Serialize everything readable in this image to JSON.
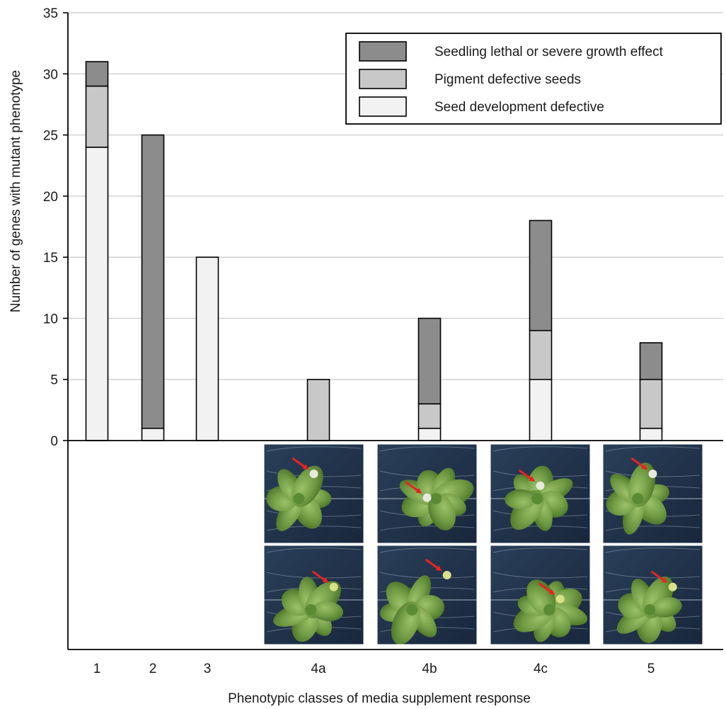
{
  "chart_data": {
    "type": "bar",
    "stacked": true,
    "title": "",
    "xlabel": "Phenotypic classes of media supplement response",
    "ylabel": "Number of genes with mutant phenotype",
    "ylim": [
      0,
      35
    ],
    "yticks": [
      0,
      5,
      10,
      15,
      20,
      25,
      30,
      35
    ],
    "grid": true,
    "legend_position": "top-right",
    "categories": [
      "1",
      "2",
      "3",
      "4a",
      "4b",
      "4c",
      "5"
    ],
    "series": [
      {
        "name": "Seed development defective",
        "color": "#f2f2f2",
        "values": [
          24,
          1,
          15,
          0,
          1,
          5,
          1
        ]
      },
      {
        "name": "Pigment defective seeds",
        "color": "#c8c8c8",
        "values": [
          5,
          0,
          0,
          5,
          2,
          4,
          4
        ]
      },
      {
        "name": "Seedling lethal or severe growth effect",
        "color": "#8c8c8c",
        "values": [
          2,
          24,
          0,
          0,
          7,
          9,
          3
        ]
      }
    ],
    "legend_order": [
      "Seedling lethal or severe growth effect",
      "Pigment defective seeds",
      "Seed development defective"
    ],
    "photo_panels": [
      {
        "category": "4a",
        "images": [
          "plant-photo-icon",
          "plant-photo-icon"
        ]
      },
      {
        "category": "4b",
        "images": [
          "plant-photo-icon",
          "plant-photo-icon"
        ]
      },
      {
        "category": "4c",
        "images": [
          "plant-photo-icon",
          "plant-photo-icon"
        ]
      },
      {
        "category": "5",
        "images": [
          "plant-photo-icon",
          "plant-photo-icon"
        ]
      }
    ]
  }
}
